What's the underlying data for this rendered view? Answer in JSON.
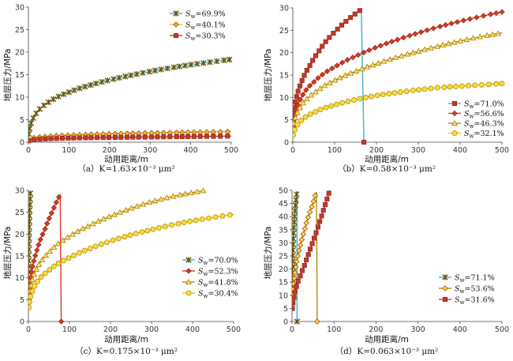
{
  "figure": {
    "panels": [
      {
        "caption": "（a）K=1.63×10⁻³ μm²",
        "xlabel": "动用距离/m",
        "ylabel": "地层压力/MPa",
        "legend_position": "top-right"
      },
      {
        "caption": "（b）K=0.58×10⁻³ μm²",
        "xlabel": "动用距离/m",
        "ylabel": "地层压力/MPa",
        "legend_position": "bottom-right"
      },
      {
        "caption": "（c）K=0.175×10⁻³ μm²",
        "xlabel": "动用距离/m",
        "ylabel": "地层压力/MPa",
        "legend_position": "bottom-right"
      },
      {
        "caption": "（d）K=0.063×10⁻³ μm²",
        "xlabel": "动用距离/m",
        "ylabel": "地层压力/MPa",
        "legend_position": "bottom-right"
      }
    ]
  },
  "chart_data": [
    {
      "type": "line",
      "title": "（a）K=1.63×10⁻³ μm²",
      "xlabel": "动用距离/m",
      "ylabel": "地层压力/MPa",
      "xlim": [
        0,
        500
      ],
      "ylim": [
        0,
        30
      ],
      "xticks": [
        0,
        100,
        200,
        300,
        400,
        500
      ],
      "yticks": [
        0,
        5,
        10,
        15,
        20,
        25,
        30
      ],
      "legend": "top-right",
      "grid": false,
      "series": [
        {
          "name": "Sw=69.9%",
          "label": "=69.9%",
          "color": "#3ab5c8",
          "marker": "star",
          "markerFill": "#e8c21a",
          "points": [
            [
              1,
              1.8
            ],
            [
              5,
              3.6
            ],
            [
              10,
              5.0
            ],
            [
              20,
              6.5
            ],
            [
              50,
              8.9
            ],
            [
              100,
              11.1
            ],
            [
              150,
              12.6
            ],
            [
              200,
              13.8
            ],
            [
              250,
              14.8
            ],
            [
              300,
              15.7
            ],
            [
              350,
              16.5
            ],
            [
              400,
              17.2
            ],
            [
              450,
              17.8
            ],
            [
              500,
              18.4
            ]
          ]
        },
        {
          "name": "Sw=40.1%",
          "label": "=40.1%",
          "color": "#e8c21a",
          "marker": "diamond",
          "markerFill": "#e8c21a",
          "points": [
            [
              1,
              0.5
            ],
            [
              10,
              0.9
            ],
            [
              50,
              1.3
            ],
            [
              100,
              1.55
            ],
            [
              200,
              1.85
            ],
            [
              300,
              2.05
            ],
            [
              400,
              2.2
            ],
            [
              500,
              2.35
            ]
          ]
        },
        {
          "name": "Sw=30.3%",
          "label": "=30.3%",
          "color": "#c0392b",
          "marker": "square",
          "markerFill": "#c0392b",
          "points": [
            [
              1,
              0.3
            ],
            [
              10,
              0.5
            ],
            [
              50,
              0.75
            ],
            [
              100,
              0.9
            ],
            [
              200,
              1.05
            ],
            [
              300,
              1.15
            ],
            [
              400,
              1.25
            ],
            [
              500,
              1.35
            ]
          ]
        }
      ]
    },
    {
      "type": "line",
      "title": "（b）K=0.58×10⁻³ μm²",
      "xlabel": "动用距离/m",
      "ylabel": "地层压力/MPa",
      "xlim": [
        0,
        500
      ],
      "ylim": [
        0,
        30
      ],
      "xticks": [
        0,
        100,
        200,
        300,
        400,
        500
      ],
      "yticks": [
        0,
        5,
        10,
        15,
        20,
        25,
        30
      ],
      "legend": "bottom-right",
      "grid": false,
      "series": [
        {
          "name": "Sw=71.0%",
          "label": "=71.0%",
          "color": "#3ab5c8",
          "marker": "square",
          "markerFill": "#c0392b",
          "points": [
            [
              1,
              4.0
            ],
            [
              5,
              8.0
            ],
            [
              10,
              10.5
            ],
            [
              20,
              13.2
            ],
            [
              40,
              17.0
            ],
            [
              60,
              20.0
            ],
            [
              80,
              22.6
            ],
            [
              100,
              24.6
            ],
            [
              120,
              26.4
            ],
            [
              140,
              28.0
            ],
            [
              160,
              29.4
            ],
            [
              170,
              30.0
            ]
          ]
        },
        {
          "name": "Sw=56.6%",
          "label": "=56.6%",
          "color": "#d63a1f",
          "marker": "diamond",
          "markerFill": "#d63a1f",
          "points": [
            [
              1,
              3.5
            ],
            [
              5,
              6.2
            ],
            [
              10,
              7.8
            ],
            [
              20,
              9.9
            ],
            [
              50,
              13.4
            ],
            [
              100,
              16.8
            ],
            [
              150,
              19.2
            ],
            [
              200,
              21.2
            ],
            [
              250,
              22.9
            ],
            [
              300,
              24.4
            ],
            [
              350,
              25.8
            ],
            [
              400,
              27.0
            ],
            [
              450,
              28.1
            ],
            [
              500,
              29.1
            ]
          ]
        },
        {
          "name": "Sw=46.3%",
          "label": "=46.3%",
          "color": "#b8860b",
          "marker": "triangle",
          "markerFill": "#f7e87a",
          "points": [
            [
              1,
              3.0
            ],
            [
              5,
              5.0
            ],
            [
              10,
              6.4
            ],
            [
              20,
              8.1
            ],
            [
              50,
              10.9
            ],
            [
              100,
              13.8
            ],
            [
              150,
              15.8
            ],
            [
              200,
              17.5
            ],
            [
              250,
              19.0
            ],
            [
              300,
              20.3
            ],
            [
              350,
              21.5
            ],
            [
              400,
              22.6
            ],
            [
              450,
              23.6
            ],
            [
              500,
              24.4
            ]
          ]
        },
        {
          "name": "Sw=32.1%",
          "label": "=32.1%",
          "color": "#e8c21a",
          "marker": "circle",
          "markerFill": "#f5e03a",
          "points": [
            [
              1,
              1.6
            ],
            [
              5,
              2.8
            ],
            [
              10,
              3.7
            ],
            [
              20,
              4.8
            ],
            [
              50,
              6.6
            ],
            [
              100,
              8.3
            ],
            [
              150,
              9.5
            ],
            [
              200,
              10.4
            ],
            [
              250,
              11.1
            ],
            [
              300,
              11.7
            ],
            [
              350,
              12.2
            ],
            [
              400,
              12.5
            ],
            [
              450,
              12.8
            ],
            [
              500,
              13.1
            ]
          ]
        }
      ]
    },
    {
      "type": "line",
      "title": "（c）K=0.175×10⁻³ μm²",
      "xlabel": "动用距离/m",
      "ylabel": "地层压力/MPa",
      "xlim": [
        0,
        500
      ],
      "ylim": [
        0,
        30
      ],
      "xticks": [
        0,
        100,
        200,
        300,
        400,
        500
      ],
      "yticks": [
        0,
        5,
        10,
        15,
        20,
        25,
        30
      ],
      "legend": "bottom-right",
      "grid": false,
      "series": [
        {
          "name": "Sw=70.0%",
          "label": "=70.0%",
          "color": "#3ab5c8",
          "marker": "star",
          "markerFill": "#e8c21a",
          "points": [
            [
              0.5,
              10.0
            ],
            [
              1,
              16.0
            ],
            [
              2,
              21.0
            ],
            [
              3,
              25.0
            ],
            [
              4,
              27.0
            ],
            [
              5,
              30.0
            ]
          ]
        },
        {
          "name": "Sw=52.3%",
          "label": "=52.3%",
          "color": "#d63a1f",
          "marker": "diamond",
          "markerFill": "#d63a1f",
          "points": [
            [
              1,
              5.0
            ],
            [
              5,
              9.5
            ],
            [
              10,
              12.5
            ],
            [
              20,
              16.0
            ],
            [
              40,
              21.0
            ],
            [
              60,
              25.5
            ],
            [
              80,
              29.5
            ]
          ]
        },
        {
          "name": "Sw=41.8%",
          "label": "=41.8%",
          "color": "#b8860b",
          "marker": "triangle",
          "markerFill": "#f7e87a",
          "points": [
            [
              1,
              4.5
            ],
            [
              5,
              7.6
            ],
            [
              10,
              9.6
            ],
            [
              20,
              12.0
            ],
            [
              50,
              15.8
            ],
            [
              100,
              19.5
            ],
            [
              150,
              22.0
            ],
            [
              200,
              24.1
            ],
            [
              250,
              25.9
            ],
            [
              300,
              27.4
            ],
            [
              350,
              28.6
            ],
            [
              400,
              29.5
            ],
            [
              430,
              30.0
            ]
          ]
        },
        {
          "name": "Sw=30.4%",
          "label": "=30.4%",
          "color": "#e8c21a",
          "marker": "circle",
          "markerFill": "#f5e03a",
          "points": [
            [
              1,
              3.2
            ],
            [
              5,
              5.6
            ],
            [
              10,
              7.0
            ],
            [
              20,
              8.8
            ],
            [
              50,
              11.7
            ],
            [
              100,
              14.6
            ],
            [
              150,
              16.7
            ],
            [
              200,
              18.4
            ],
            [
              250,
              19.8
            ],
            [
              300,
              21.0
            ],
            [
              350,
              22.1
            ],
            [
              400,
              23.0
            ],
            [
              450,
              23.8
            ],
            [
              500,
              24.5
            ]
          ]
        }
      ]
    },
    {
      "type": "line",
      "title": "（d）K=0.063×10⁻³ μm²",
      "xlabel": "动用距离/m",
      "ylabel": "地层压力/MPa",
      "xlim": [
        0,
        500
      ],
      "ylim": [
        0,
        50
      ],
      "xticks": [
        0,
        100,
        200,
        300,
        400,
        500
      ],
      "yticks": [
        0,
        5,
        10,
        15,
        20,
        25,
        30,
        35,
        40,
        45,
        50
      ],
      "legend": "bottom-right",
      "grid": false,
      "series": [
        {
          "name": "Sw=71.1%",
          "label": "=71.1%",
          "color": "#3ab5c8",
          "marker": "star",
          "markerFill": "#e8c21a",
          "points": [
            [
              0.5,
              10.0
            ],
            [
              1,
              17.0
            ],
            [
              2,
              25.0
            ],
            [
              4,
              34.0
            ],
            [
              6,
              40.0
            ],
            [
              8,
              44.0
            ],
            [
              10,
              47.0
            ],
            [
              12,
              50.0
            ]
          ]
        },
        {
          "name": "Sw=53.6%",
          "label": "=53.6%",
          "color": "#b8860b",
          "marker": "diamond",
          "markerFill": "#f5e03a",
          "points": [
            [
              1,
              8.0
            ],
            [
              5,
              16.0
            ],
            [
              10,
              21.5
            ],
            [
              20,
              29.0
            ],
            [
              30,
              35.0
            ],
            [
              40,
              40.5
            ],
            [
              50,
              45.0
            ],
            [
              55,
              48.0
            ],
            [
              60,
              50.0
            ]
          ]
        },
        {
          "name": "Sw=31.6%",
          "label": "=31.6%",
          "color": "#c0392b",
          "marker": "square",
          "markerFill": "#c0392b",
          "points": [
            [
              1,
              5.0
            ],
            [
              5,
              9.5
            ],
            [
              10,
              13.0
            ],
            [
              20,
              17.5
            ],
            [
              30,
              21.5
            ],
            [
              40,
              26.0
            ],
            [
              50,
              30.5
            ],
            [
              60,
              35.0
            ],
            [
              70,
              40.0
            ],
            [
              80,
              45.0
            ],
            [
              90,
              50.0
            ]
          ]
        }
      ]
    }
  ]
}
